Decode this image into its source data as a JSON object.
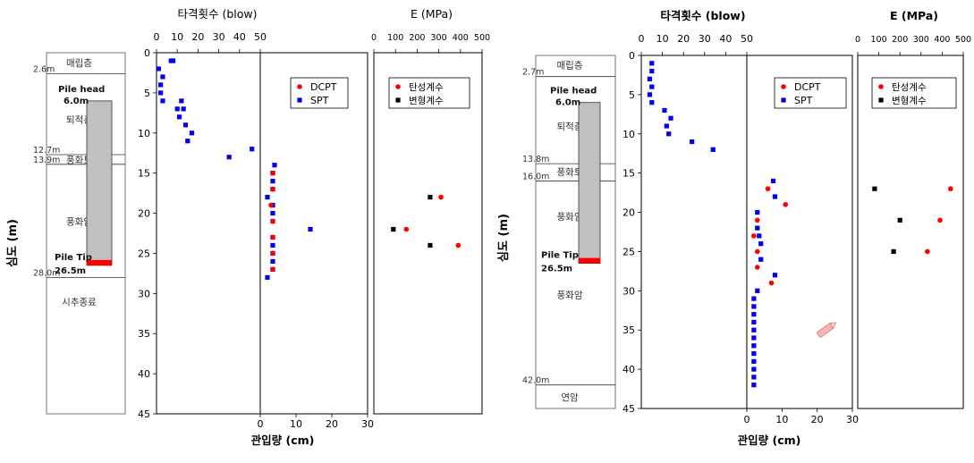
{
  "chart_data": [
    {
      "type": "scatter",
      "panel": "left",
      "top_axis_label": "타격횟수 (blow)",
      "bottom_axis_label": "관입량 (cm)",
      "y_label": "심도 (m)",
      "e_axis_label": "E (MPa)",
      "depth_ticks": [
        "0",
        "5",
        "10",
        "15",
        "20",
        "25",
        "30",
        "35",
        "40",
        "45"
      ],
      "blow_ticks": [
        "0",
        "10",
        "20",
        "30",
        "40",
        "50"
      ],
      "pen_ticks": [
        "0",
        "10",
        "20",
        "30"
      ],
      "e_ticks": [
        "0",
        "100",
        "200",
        "300",
        "400",
        "500"
      ],
      "ylim": [
        0,
        45
      ],
      "pile": {
        "head_label": "Pile head",
        "head_depth_label": "6.0m",
        "tip_label": "Pile Tip",
        "tip_depth_label": "26.5m",
        "head_depth": 6.0,
        "tip_depth": 26.5
      },
      "strata": [
        {
          "depth": 2.6,
          "label": "2.6m"
        },
        {
          "depth": 12.7,
          "label": "12.7m"
        },
        {
          "depth": 13.9,
          "label": "13.9m"
        },
        {
          "depth": 28.0,
          "label": "28.0m"
        }
      ],
      "layer_names": [
        {
          "text": "매립층",
          "depth": 1.2
        },
        {
          "text": "퇴적층",
          "depth": 8.3
        },
        {
          "text": "풍화토",
          "depth": 13.3
        },
        {
          "text": "풍화암",
          "depth": 21.0
        },
        {
          "text": "시추종료",
          "depth": 31.0
        }
      ],
      "legend_main": [
        "DCPT",
        "SPT"
      ],
      "legend_e": [
        "탄성계수",
        "변형계수"
      ],
      "spt": [
        [
          8,
          1
        ],
        [
          7,
          1
        ],
        [
          1,
          2
        ],
        [
          3,
          3
        ],
        [
          2,
          4
        ],
        [
          2,
          5
        ],
        [
          3,
          6
        ],
        [
          12,
          6
        ],
        [
          13,
          7
        ],
        [
          10,
          7
        ],
        [
          11,
          8
        ],
        [
          17,
          10
        ],
        [
          14,
          9
        ],
        [
          15,
          11
        ],
        [
          46,
          12
        ],
        [
          35,
          13
        ]
      ],
      "spt_pen": [
        [
          4,
          14
        ],
        [
          3.5,
          15
        ],
        [
          3.5,
          16
        ],
        [
          3.5,
          17
        ],
        [
          2,
          18
        ],
        [
          3.5,
          19
        ],
        [
          3.5,
          20
        ],
        [
          3.5,
          21
        ],
        [
          14,
          22
        ],
        [
          3.5,
          23
        ],
        [
          3.5,
          24
        ],
        [
          3.5,
          25
        ],
        [
          3.5,
          26
        ],
        [
          3.5,
          27
        ],
        [
          2,
          28
        ]
      ],
      "dcpt": [
        [
          3.5,
          15
        ],
        [
          3.5,
          17
        ],
        [
          3,
          19
        ],
        [
          3.5,
          21
        ],
        [
          3.5,
          23
        ],
        [
          3.5,
          25
        ],
        [
          3.5,
          27
        ]
      ],
      "e_elastic": [
        [
          310,
          18
        ],
        [
          150,
          22
        ],
        [
          390,
          24
        ]
      ],
      "e_deform": [
        [
          260,
          18
        ],
        [
          90,
          22
        ],
        [
          260,
          24
        ]
      ]
    },
    {
      "type": "scatter",
      "panel": "right",
      "top_axis_label": "타격횟수 (blow)",
      "bottom_axis_label": "관입량 (cm)",
      "y_label": "심도 (m)",
      "e_axis_label": "E (MPa)",
      "depth_ticks": [
        "0",
        "5",
        "10",
        "15",
        "20",
        "25",
        "30",
        "35",
        "40",
        "45"
      ],
      "blow_ticks": [
        "0",
        "10",
        "20",
        "30",
        "40",
        "50"
      ],
      "pen_ticks": [
        "0",
        "10",
        "20",
        "30"
      ],
      "e_ticks": [
        "0",
        "100",
        "200",
        "300",
        "400",
        "500"
      ],
      "ylim": [
        0,
        45
      ],
      "pile": {
        "head_label": "Pile head",
        "head_depth_label": "6.0m",
        "tip_label": "Pile Tip",
        "tip_depth_label": "26.5m",
        "head_depth": 6.0,
        "tip_depth": 26.5
      },
      "strata": [
        {
          "depth": 2.7,
          "label": "2.7m"
        },
        {
          "depth": 13.8,
          "label": "13.8m"
        },
        {
          "depth": 16.0,
          "label": "16.0m"
        },
        {
          "depth": 42.0,
          "label": "42.0m"
        }
      ],
      "layer_names": [
        {
          "text": "매립층",
          "depth": 1.2
        },
        {
          "text": "퇴적층",
          "depth": 9.0
        },
        {
          "text": "풍화토",
          "depth": 14.8
        },
        {
          "text": "풍화암",
          "depth": 20.5
        },
        {
          "text": "풍화암",
          "depth": 30.5
        },
        {
          "text": "연암",
          "depth": 43.5
        }
      ],
      "legend_main": [
        "DCPT",
        "SPT"
      ],
      "legend_e": [
        "탄성계수",
        "변형계수"
      ],
      "spt": [
        [
          5,
          1
        ],
        [
          5,
          2
        ],
        [
          4,
          3
        ],
        [
          5,
          4
        ],
        [
          4,
          5
        ],
        [
          5,
          6
        ],
        [
          11,
          7
        ],
        [
          12,
          9
        ],
        [
          13,
          10
        ],
        [
          14,
          8
        ],
        [
          24,
          11
        ],
        [
          34,
          12
        ]
      ],
      "spt_pen": [
        [
          7.5,
          16
        ],
        [
          8,
          18
        ],
        [
          3,
          20
        ],
        [
          3,
          22
        ],
        [
          4,
          24
        ],
        [
          4,
          26
        ],
        [
          8,
          28
        ],
        [
          3,
          30
        ],
        [
          2,
          31
        ],
        [
          2,
          32
        ],
        [
          2,
          33
        ],
        [
          2,
          34
        ],
        [
          2,
          35
        ],
        [
          2,
          36
        ],
        [
          2,
          37
        ],
        [
          2,
          38
        ],
        [
          2,
          39
        ],
        [
          2,
          40
        ],
        [
          2,
          41
        ],
        [
          2,
          42
        ],
        [
          3.5,
          23
        ]
      ],
      "dcpt": [
        [
          6,
          17
        ],
        [
          11,
          19
        ],
        [
          3,
          21
        ],
        [
          2,
          23
        ],
        [
          3,
          25
        ],
        [
          3,
          27
        ],
        [
          7,
          29
        ]
      ],
      "e_elastic": [
        [
          440,
          17
        ],
        [
          390,
          21
        ],
        [
          330,
          25
        ]
      ],
      "e_deform": [
        [
          80,
          17
        ],
        [
          200,
          21
        ],
        [
          170,
          25
        ]
      ]
    }
  ]
}
